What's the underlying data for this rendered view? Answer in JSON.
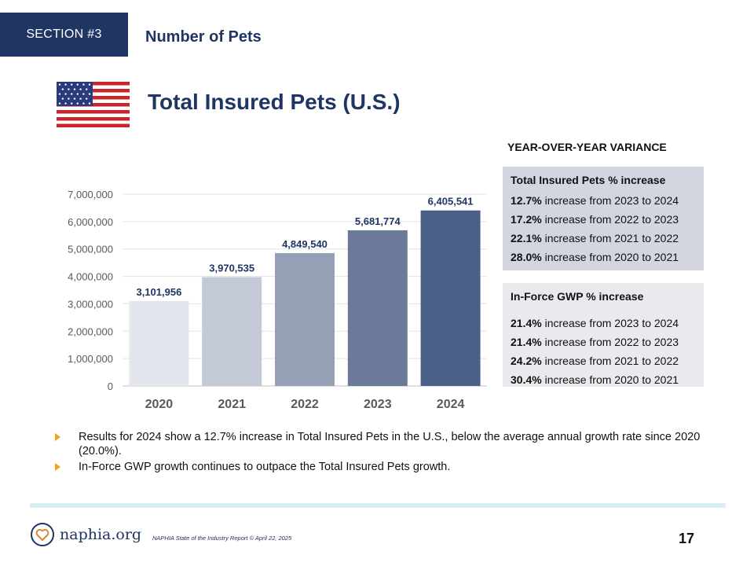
{
  "header": {
    "section_label": "SECTION #3",
    "section_title": "Number of Pets"
  },
  "main_title": "Total Insured Pets (U.S.)",
  "yoy": {
    "heading": "YEAR-OVER-YEAR VARIANCE",
    "pets_box": {
      "title": "Total Insured Pets % increase",
      "rows": [
        {
          "pct": "12.7%",
          "text": " increase from 2023 to 2024"
        },
        {
          "pct": "17.2%",
          "text": " increase from 2022 to 2023"
        },
        {
          "pct": "22.1%",
          "text": " increase from 2021 to 2022"
        },
        {
          "pct": "28.0%",
          "text": " increase from 2020 to 2021"
        }
      ]
    },
    "gwp_box": {
      "title": "In-Force GWP % increase",
      "rows": [
        {
          "pct": "21.4%",
          "text": " increase from 2023 to 2024"
        },
        {
          "pct": "21.4%",
          "text": " increase from 2022 to 2023"
        },
        {
          "pct": "24.2%",
          "text": " increase from 2021 to 2022"
        },
        {
          "pct": "30.4%",
          "text": " increase from 2020 to 2021"
        }
      ]
    }
  },
  "chart_data": {
    "type": "bar",
    "title": "",
    "xlabel": "",
    "ylabel": "",
    "categories": [
      "2020",
      "2021",
      "2022",
      "2023",
      "2024"
    ],
    "values": [
      3101956,
      3970535,
      4849540,
      5681774,
      6405541
    ],
    "value_labels": [
      "3,101,956",
      "3,970,535",
      "4,849,540",
      "5,681,774",
      "6,405,541"
    ],
    "ylim": [
      0,
      7000000
    ],
    "yticks": [
      0,
      1000000,
      2000000,
      3000000,
      4000000,
      5000000,
      6000000,
      7000000
    ],
    "ytick_labels": [
      "0",
      "1,000,000",
      "2,000,000",
      "3,000,000",
      "4,000,000",
      "5,000,000",
      "6,000,000",
      "7,000,000"
    ],
    "bar_colors": [
      "#e3e6ed",
      "#c3c9d6",
      "#959fb6",
      "#6b7a98",
      "#4b6087"
    ],
    "grid": true,
    "legend": "none"
  },
  "bullets": [
    "Results for 2024 show a 12.7% increase in Total Insured Pets in the U.S., below the average annual growth rate since 2020 (20.0%).",
    "In-Force GWP growth continues to outpace the Total Insured Pets growth."
  ],
  "footer": {
    "logo_text": "naphia.org",
    "note": "NAPHIA State of the Industry Report © April 22, 2025",
    "page_number": "17"
  }
}
